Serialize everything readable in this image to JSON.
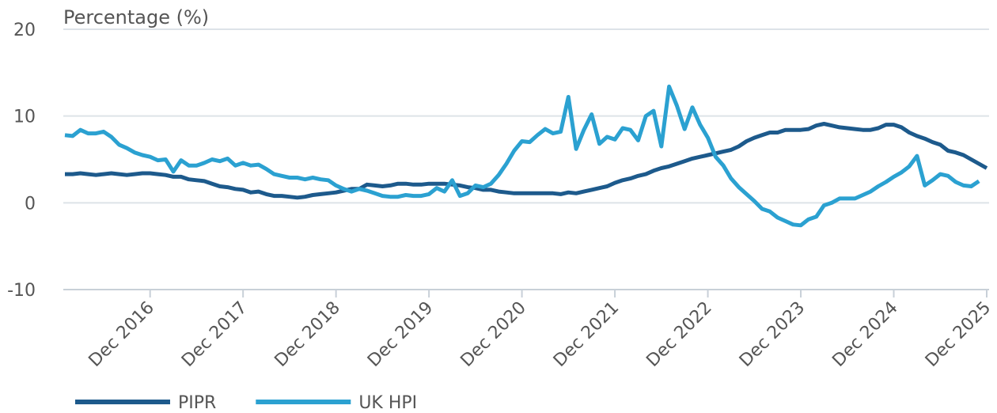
{
  "chart_data": {
    "type": "line",
    "y_label": "Percentage (%)",
    "categories": [
      null,
      null,
      null,
      null,
      null,
      null,
      null,
      null,
      null,
      null,
      null,
      "Dec 2016",
      null,
      null,
      null,
      null,
      null,
      null,
      null,
      null,
      null,
      null,
      null,
      "Dec 2017",
      null,
      null,
      null,
      null,
      null,
      null,
      null,
      null,
      null,
      null,
      null,
      "Dec 2018",
      null,
      null,
      null,
      null,
      null,
      null,
      null,
      null,
      null,
      null,
      null,
      "Dec 2019",
      null,
      null,
      null,
      null,
      null,
      null,
      null,
      null,
      null,
      null,
      null,
      "Dec 2020",
      null,
      null,
      null,
      null,
      null,
      null,
      null,
      null,
      null,
      null,
      null,
      "Dec 2021",
      null,
      null,
      null,
      null,
      null,
      null,
      null,
      null,
      null,
      null,
      null,
      "Dec 2022",
      null,
      null,
      null,
      null,
      null,
      null,
      null,
      null,
      null,
      null,
      null,
      "Dec 2023",
      null,
      null,
      null,
      null,
      null,
      null,
      null,
      null,
      null,
      null,
      null,
      "Dec 2024",
      null,
      null,
      null,
      null,
      null,
      null,
      null,
      null,
      null,
      null,
      null,
      "Dec 2025"
    ],
    "series": [
      {
        "name": "PIPR",
        "color": "#1d5a8c",
        "values": [
          3.3,
          3.3,
          3.4,
          3.3,
          3.2,
          3.3,
          3.4,
          3.3,
          3.2,
          3.3,
          3.4,
          3.4,
          3.3,
          3.2,
          3.0,
          3.0,
          2.7,
          2.6,
          2.5,
          2.2,
          1.9,
          1.8,
          1.6,
          1.5,
          1.2,
          1.3,
          1.0,
          0.8,
          0.8,
          0.7,
          0.6,
          0.7,
          0.9,
          1.0,
          1.1,
          1.2,
          1.4,
          1.6,
          1.6,
          2.1,
          2.0,
          1.9,
          2.0,
          2.2,
          2.2,
          2.1,
          2.1,
          2.2,
          2.2,
          2.2,
          2.1,
          2.0,
          1.8,
          1.7,
          1.5,
          1.5,
          1.3,
          1.2,
          1.1,
          1.1,
          1.1,
          1.1,
          1.1,
          1.1,
          1.0,
          1.2,
          1.1,
          1.3,
          1.5,
          1.7,
          1.9,
          2.3,
          2.6,
          2.8,
          3.1,
          3.3,
          3.7,
          4.0,
          4.2,
          4.5,
          4.8,
          5.1,
          5.3,
          5.5,
          5.7,
          5.9,
          6.1,
          6.5,
          7.1,
          7.5,
          7.8,
          8.1,
          8.1,
          8.4,
          8.4,
          8.4,
          8.5,
          8.9,
          9.1,
          8.9,
          8.7,
          8.6,
          8.5,
          8.4,
          8.4,
          8.6,
          9.0,
          9.0,
          8.7,
          8.1,
          7.7,
          7.4,
          7.0,
          6.7,
          6.0,
          5.8,
          5.5,
          5.0,
          4.5,
          4.0
        ]
      },
      {
        "name": "UK HPI",
        "color": "#2ba1d1",
        "values": [
          7.8,
          7.7,
          8.4,
          8.0,
          8.0,
          8.2,
          7.6,
          6.7,
          6.3,
          5.8,
          5.5,
          5.3,
          4.9,
          5.0,
          3.6,
          4.9,
          4.3,
          4.3,
          4.6,
          5.0,
          4.8,
          5.1,
          4.3,
          4.6,
          4.3,
          4.4,
          3.9,
          3.3,
          3.1,
          2.9,
          2.9,
          2.7,
          2.9,
          2.7,
          2.6,
          2.0,
          1.6,
          1.3,
          1.6,
          1.4,
          1.1,
          0.8,
          0.7,
          0.7,
          0.9,
          0.8,
          0.8,
          1.0,
          1.7,
          1.3,
          2.6,
          0.8,
          1.1,
          2.0,
          1.8,
          2.2,
          3.2,
          4.5,
          6.0,
          7.1,
          7.0,
          7.8,
          8.5,
          8.0,
          8.2,
          12.2,
          6.2,
          8.4,
          10.2,
          6.8,
          7.6,
          7.3,
          8.6,
          8.4,
          7.2,
          10.0,
          10.6,
          6.5,
          13.4,
          11.2,
          8.5,
          11.0,
          9.0,
          7.5,
          5.3,
          4.3,
          2.8,
          1.8,
          1.0,
          0.2,
          -0.7,
          -1.0,
          -1.7,
          -2.1,
          -2.5,
          -2.6,
          -1.9,
          -1.6,
          -0.3,
          0.0,
          0.5,
          0.5,
          0.5,
          0.9,
          1.3,
          1.9,
          2.4,
          3.0,
          3.5,
          4.2,
          5.4,
          2.0,
          2.6,
          3.3,
          3.1,
          2.4,
          2.0,
          1.9,
          2.5,
          null
        ]
      }
    ],
    "ylim": [
      -10,
      20
    ],
    "yticks": [
      -10,
      0,
      10,
      20
    ],
    "grid": true,
    "legend": "bottom-left"
  }
}
